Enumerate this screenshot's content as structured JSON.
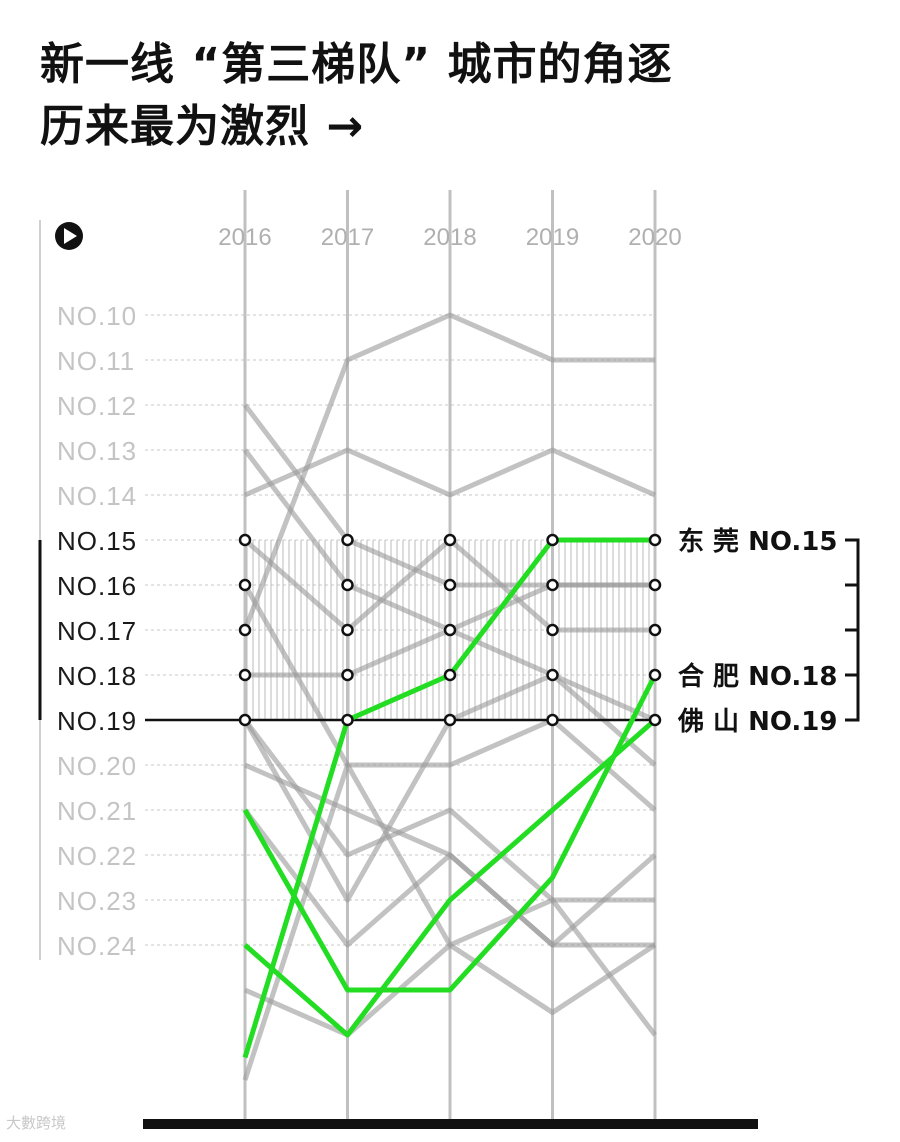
{
  "title": {
    "line1": "新一线 “第三梯队” 城市的角逐",
    "line2": "历来最为激烈 →"
  },
  "play_icon": "play-icon",
  "watermark": "大數跨境",
  "colors": {
    "highlight": "#22dd22",
    "other": "#9a9a9a",
    "grid": "#c8c8c8",
    "axis_line": "#111111",
    "label_inactive": "#c4c4c4"
  },
  "chart_data": {
    "type": "line",
    "x": [
      "2016",
      "2017",
      "2018",
      "2019",
      "2020"
    ],
    "y_ticks": [
      "NO.10",
      "NO.11",
      "NO.12",
      "NO.13",
      "NO.14",
      "NO.15",
      "NO.16",
      "NO.17",
      "NO.18",
      "NO.19",
      "NO.20",
      "NO.21",
      "NO.22",
      "NO.23",
      "NO.24"
    ],
    "y_tick_values": [
      10,
      11,
      12,
      13,
      14,
      15,
      16,
      17,
      18,
      19,
      20,
      21,
      22,
      23,
      24
    ],
    "y_range": [
      9,
      27
    ],
    "y_reversed": true,
    "threshold_rank": 19,
    "highlight_band": [
      15,
      19
    ],
    "series": [
      {
        "values": [
          26.5,
          19,
          18,
          15,
          15
        ],
        "highlight": true
      },
      {
        "values": [
          21,
          25,
          25,
          22.5,
          18
        ],
        "highlight": true
      },
      {
        "values": [
          24,
          26,
          23,
          21,
          19
        ],
        "highlight": true
      },
      {
        "values": [
          17,
          11,
          10,
          11,
          11
        ],
        "highlight": false
      },
      {
        "values": [
          14,
          13,
          14,
          13,
          14
        ],
        "highlight": false
      },
      {
        "values": [
          12,
          15,
          16,
          16,
          16
        ],
        "highlight": false
      },
      {
        "values": [
          13,
          16,
          17,
          16,
          16
        ],
        "highlight": false
      },
      {
        "values": [
          15,
          17,
          15,
          17,
          17
        ],
        "highlight": false
      },
      {
        "values": [
          18,
          18,
          17,
          18,
          20
        ],
        "highlight": false
      },
      {
        "values": [
          19,
          23,
          19,
          18,
          19
        ],
        "highlight": false
      },
      {
        "values": [
          20,
          21,
          22,
          24,
          22
        ],
        "highlight": false
      },
      {
        "values": [
          16,
          20,
          20,
          19,
          21
        ],
        "highlight": false
      },
      {
        "values": [
          19,
          22,
          21,
          23,
          26
        ],
        "highlight": false
      },
      {
        "values": [
          27,
          20,
          24,
          23,
          23
        ],
        "highlight": false
      },
      {
        "values": [
          21,
          24,
          22,
          24,
          24
        ],
        "highlight": false
      },
      {
        "values": [
          25,
          26,
          24,
          25.5,
          24
        ],
        "highlight": false
      }
    ],
    "dot_ranks": [
      15,
      16,
      17,
      18,
      19
    ],
    "annotations": [
      {
        "city": "东 莞",
        "rank": "NO.15",
        "y": 15
      },
      {
        "city": "合 肥",
        "rank": "NO.18",
        "y": 18
      },
      {
        "city": "佛 山",
        "rank": "NO.19",
        "y": 19
      }
    ]
  }
}
